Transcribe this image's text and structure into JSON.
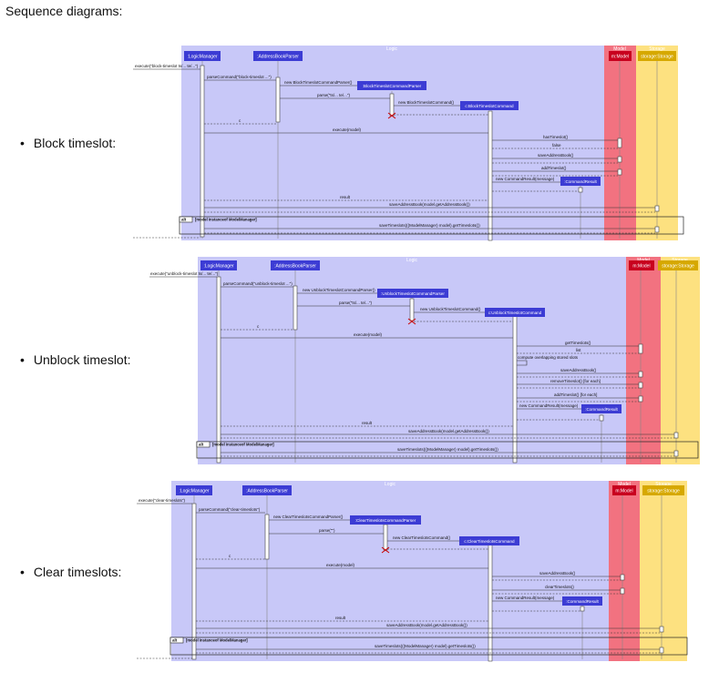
{
  "title": "Sequence diagrams:",
  "diagrams": [
    {
      "label": "Block timeslot:",
      "zones": {
        "logic": "Logic",
        "model": "Model",
        "storage": "Storage"
      },
      "participants": {
        "logic_manager": ":LogicManager",
        "parser": ":AddressBookParser",
        "cmd_parser": ":BlockTimeslotCommandParser",
        "command": "c:BlockTimeslotCommand",
        "model": "m:Model",
        "storage": "storage:Storage",
        "result": ":CommandResult"
      },
      "messages": {
        "execute": "execute(\"block-timeslot ts/... te/...\")",
        "parse_command": "parseCommand(\"block-timeslot ...\")",
        "new_parser": "new BlockTimeslotCommandParser()",
        "parse": "parse(\"ts/... te/...\")",
        "new_command": "new BlockTimeslotCommand()",
        "return_c": "c",
        "execute_model": "execute(model)",
        "steps": [
          "hasTimeslot()",
          "false",
          "saveAddressBook()",
          "addTimeslot()"
        ],
        "new_result": "new CommandResult(message)",
        "result": "result",
        "save_ab": "saveAddressBook(model.getAddressBook())",
        "alt": "alt",
        "alt_condition": "[model instanceof ModelManager]",
        "save_ts": "saveTimeslots(((ModelManager) model).getTimeslots())"
      }
    },
    {
      "label": "Unblock timeslot:",
      "zones": {
        "logic": "Logic",
        "model": "Model",
        "storage": "Storage"
      },
      "participants": {
        "logic_manager": ":LogicManager",
        "parser": ":AddressBookParser",
        "cmd_parser": ":UnblockTimeslotCommandParser",
        "command": "c:UnblockTimeslotCommand",
        "model": "m:Model",
        "storage": "storage:Storage",
        "result": ":CommandResult"
      },
      "messages": {
        "execute": "execute(\"unblock-timeslot ts/... te/...\")",
        "parse_command": "parseCommand(\"unblock-timeslot ...\")",
        "new_parser": "new UnblockTimeslotCommandParser()",
        "parse": "parse(\"ts/... te/...\")",
        "new_command": "new UnblockTimeslotCommand()",
        "return_c": "c",
        "execute_model": "execute(model)",
        "steps": [
          "getTimeslots()",
          "list",
          "compute overlapping stored slots",
          "saveAddressBook()",
          "removeTimeslot() [for each]",
          "addTimeslot() [for each]"
        ],
        "new_result": "new CommandResult(message)",
        "result": "result",
        "save_ab": "saveAddressBook(model.getAddressBook())",
        "alt": "alt",
        "alt_condition": "[model instanceof ModelManager]",
        "save_ts": "saveTimeslots(((ModelManager) model).getTimeslots())"
      }
    },
    {
      "label": "Clear timeslots:",
      "zones": {
        "logic": "Logic",
        "model": "Model",
        "storage": "Storage"
      },
      "participants": {
        "logic_manager": ":LogicManager",
        "parser": ":AddressBookParser",
        "cmd_parser": ":ClearTimeslotsCommandParser",
        "command": "c:ClearTimeslotsCommand",
        "model": "m:Model",
        "storage": "storage:Storage",
        "result": ":CommandResult"
      },
      "messages": {
        "execute": "execute(\"clear-timeslots\")",
        "parse_command": "parseCommand(\"clear-timeslots\")",
        "new_parser": "new ClearTimeslotsCommandParser()",
        "parse": "parse(\"\")",
        "new_command": "new ClearTimeslotsCommand()",
        "return_c": "c",
        "execute_model": "execute(model)",
        "steps": [
          "saveAddressBook()",
          "clearTimeslots()"
        ],
        "new_result": "new CommandResult(message)",
        "result": "result",
        "save_ab": "saveAddressBook(model.getAddressBook())",
        "alt": "alt",
        "alt_condition": "[model instanceof ModelManager]",
        "save_ts": "saveTimeslots(((ModelManager) model).getTimeslots())"
      }
    }
  ],
  "colors": {
    "logic_zone": "#c8c8f8",
    "model_zone": "#f27280",
    "storage_zone": "#fde180",
    "logic_box": "#3c3cd4",
    "model_box": "#c8001e",
    "storage_box": "#d6a800"
  }
}
